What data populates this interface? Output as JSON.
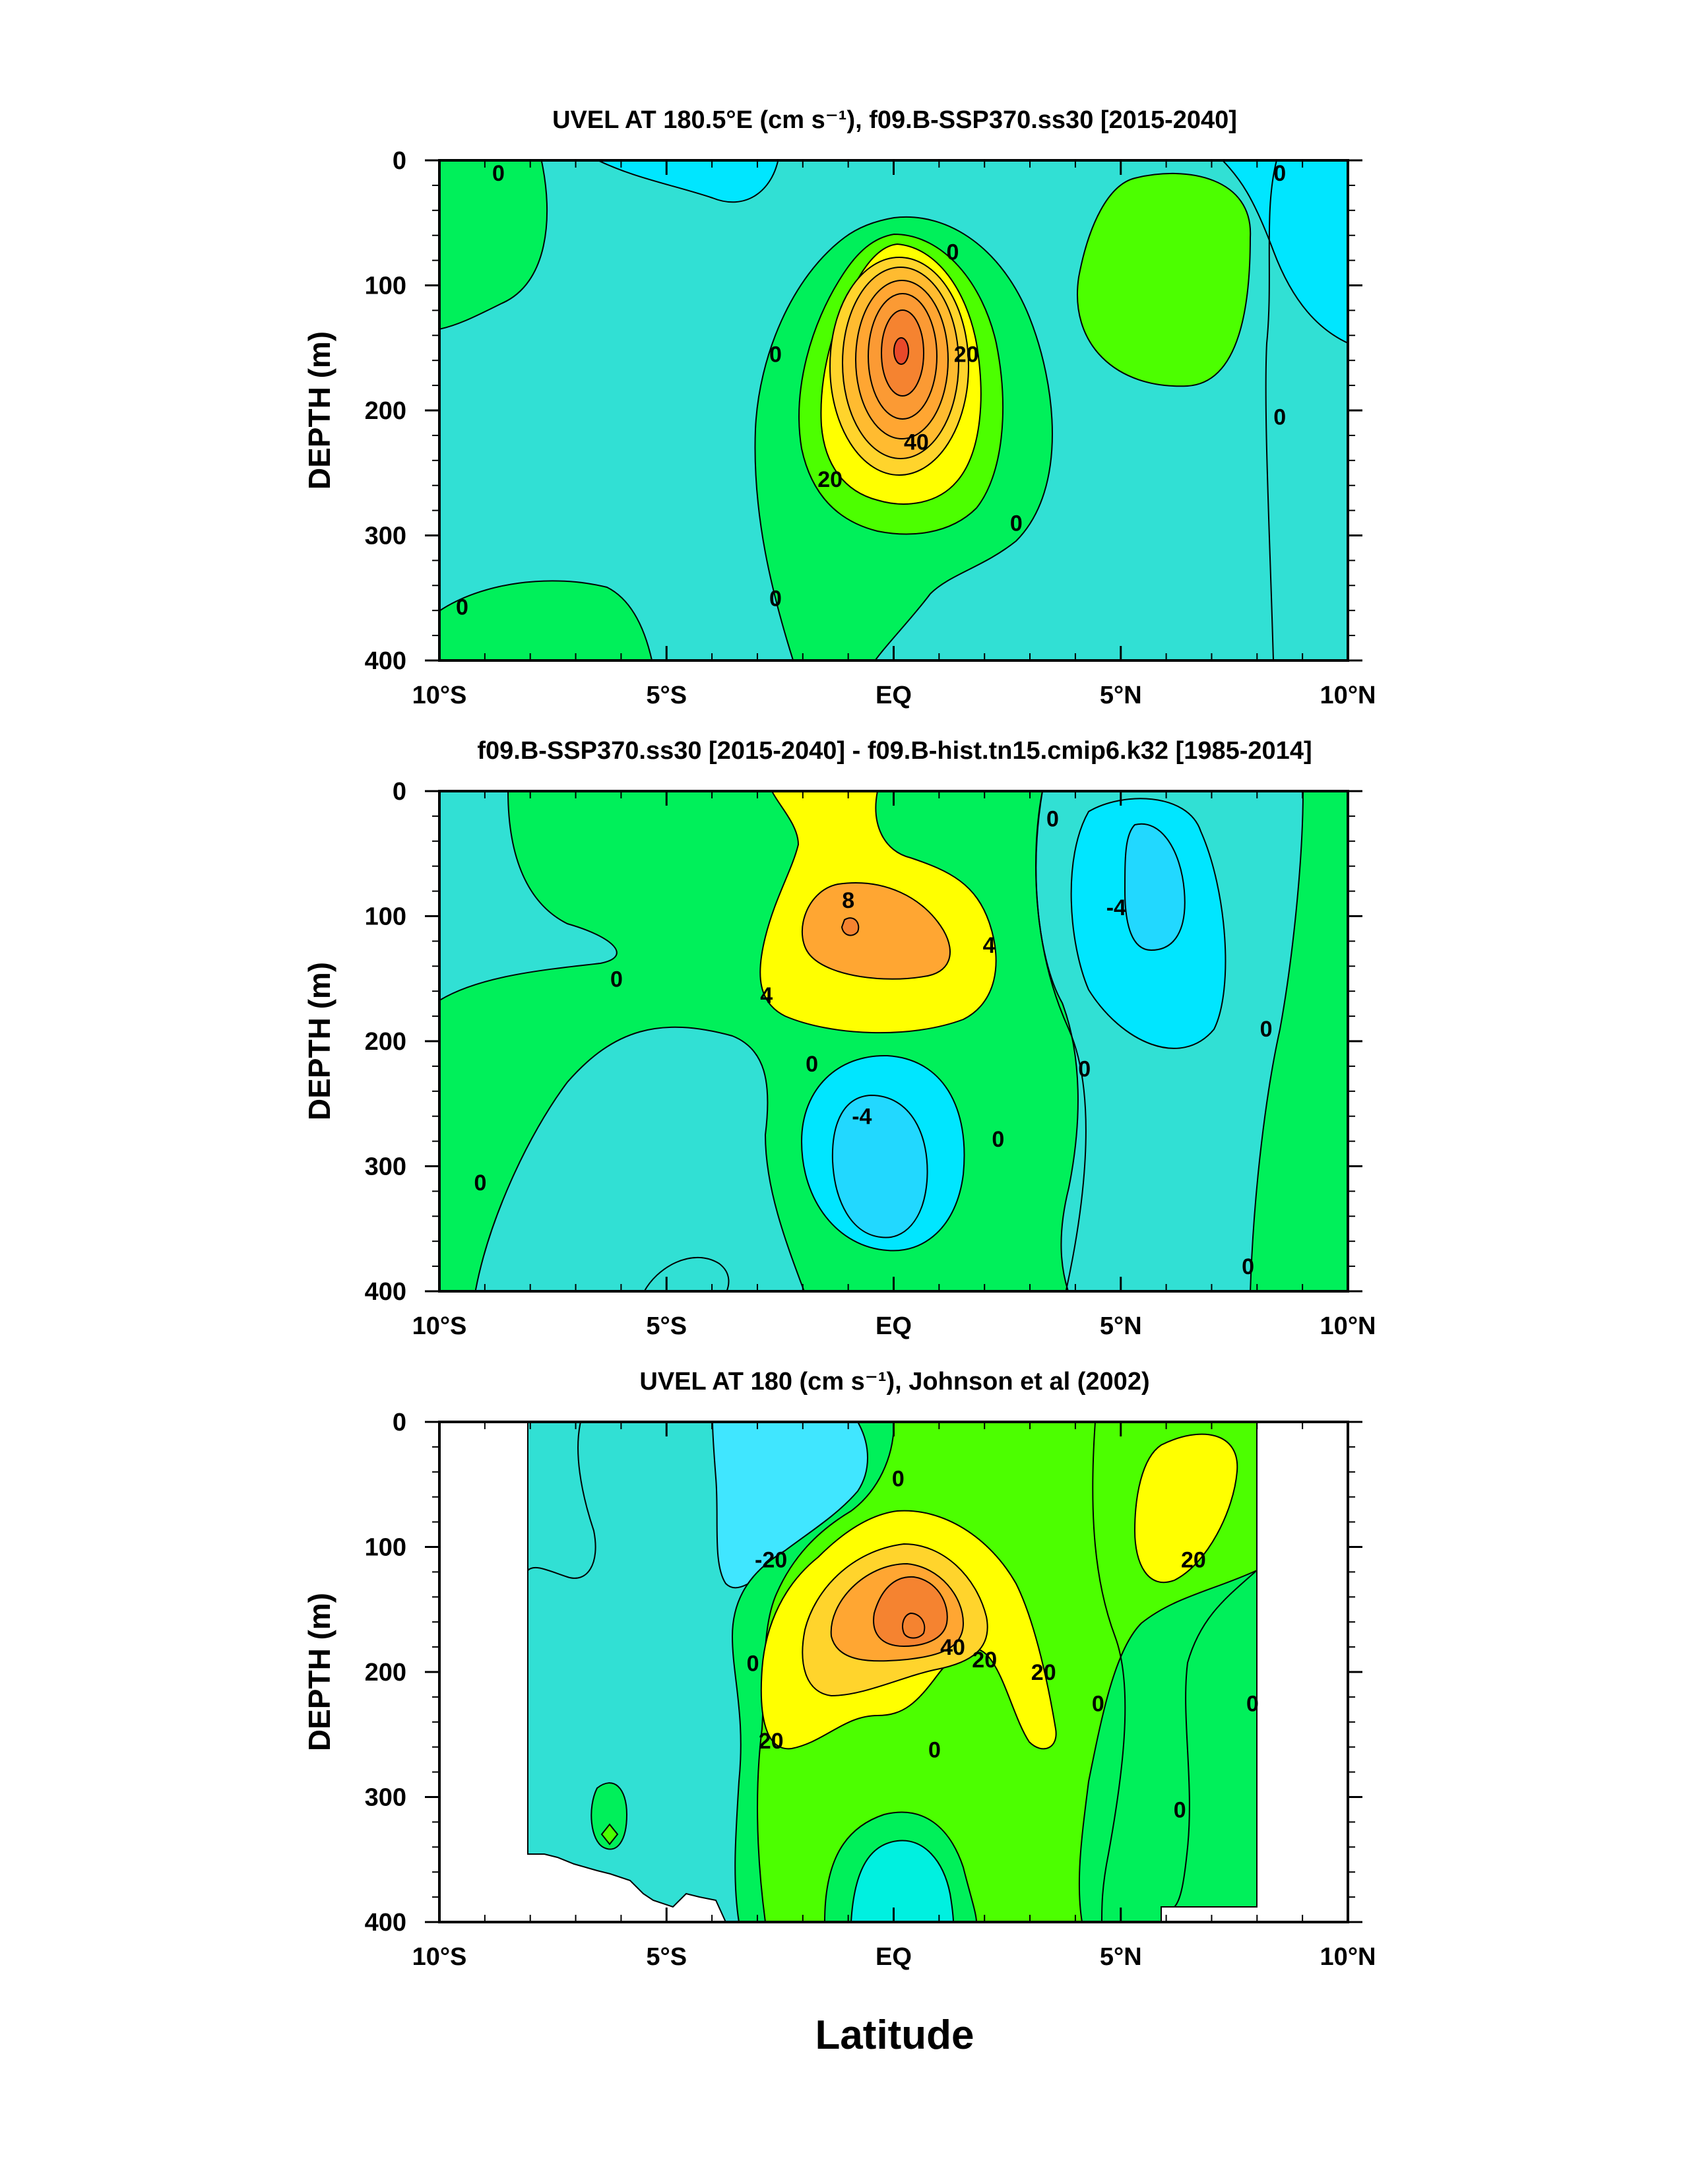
{
  "chart_data": [
    {
      "type": "contour",
      "title": "UVEL AT 180.5°E (cm s⁻¹), f09.B-SSP370.ss30 [2015-2040]",
      "ylabel": "DEPTH (m)",
      "xlim": [
        -10,
        10
      ],
      "ylim": [
        400,
        0
      ],
      "x_ticks": [
        -10,
        -5,
        0,
        5,
        10
      ],
      "x_tick_labels": [
        "10°S",
        "5°S",
        "EQ",
        "5°N",
        "10°N"
      ],
      "y_ticks": [
        0,
        100,
        200,
        300,
        400
      ],
      "y_tick_labels": [
        "0",
        "100",
        "200",
        "300",
        "400"
      ],
      "contour_labels": [
        {
          "text": "0",
          "lat": -8.7,
          "depth": 10
        },
        {
          "text": "0",
          "lat": 8.5,
          "depth": 10
        },
        {
          "text": "0",
          "lat": 1.3,
          "depth": 73
        },
        {
          "text": "0",
          "lat": -2.6,
          "depth": 155
        },
        {
          "text": "20",
          "lat": 1.6,
          "depth": 155
        },
        {
          "text": "40",
          "lat": 0.5,
          "depth": 225
        },
        {
          "text": "20",
          "lat": -1.4,
          "depth": 255
        },
        {
          "text": "0",
          "lat": 8.5,
          "depth": 205
        },
        {
          "text": "0",
          "lat": 2.7,
          "depth": 290
        },
        {
          "text": "0",
          "lat": -2.6,
          "depth": 350
        },
        {
          "text": "0",
          "lat": -9.5,
          "depth": 357
        }
      ],
      "features": [
        {
          "kind": "jet core",
          "lat": 0,
          "depth": 155,
          "max_value": 50
        },
        {
          "kind": "weak positive cell",
          "lat": -9,
          "depth": 80
        },
        {
          "kind": "weak positive cell",
          "lat": 6,
          "depth": 80
        },
        {
          "kind": "weak positive cell",
          "lat": -8,
          "depth": 380
        }
      ]
    },
    {
      "type": "contour",
      "title": "f09.B-SSP370.ss30 [2015-2040] - f09.B-hist.tn15.cmip6.k32 [1985-2014]",
      "ylabel": "DEPTH (m)",
      "xlim": [
        -10,
        10
      ],
      "ylim": [
        400,
        0
      ],
      "x_ticks": [
        -10,
        -5,
        0,
        5,
        10
      ],
      "x_tick_labels": [
        "10°S",
        "5°S",
        "EQ",
        "5°N",
        "10°N"
      ],
      "y_ticks": [
        0,
        100,
        200,
        300,
        400
      ],
      "y_tick_labels": [
        "0",
        "100",
        "200",
        "300",
        "400"
      ],
      "contour_labels": [
        {
          "text": "0",
          "lat": 3.5,
          "depth": 22
        },
        {
          "text": "8",
          "lat": -1.0,
          "depth": 87
        },
        {
          "text": "-4",
          "lat": 4.9,
          "depth": 93
        },
        {
          "text": "4",
          "lat": 2.1,
          "depth": 123
        },
        {
          "text": "0",
          "lat": -6.1,
          "depth": 150
        },
        {
          "text": "4",
          "lat": -2.8,
          "depth": 163
        },
        {
          "text": "0",
          "lat": 8.2,
          "depth": 190
        },
        {
          "text": "0",
          "lat": -1.8,
          "depth": 218
        },
        {
          "text": "0",
          "lat": 4.2,
          "depth": 222
        },
        {
          "text": "-4",
          "lat": -0.7,
          "depth": 260
        },
        {
          "text": "0",
          "lat": 2.3,
          "depth": 278
        },
        {
          "text": "0",
          "lat": -9.1,
          "depth": 313
        },
        {
          "text": "0",
          "lat": 7.8,
          "depth": 380
        }
      ],
      "features": [
        {
          "kind": "positive maximum",
          "lat": -1,
          "depth": 115,
          "max_value": 10
        },
        {
          "kind": "negative minimum",
          "lat": 0,
          "depth": 290,
          "min_value": -6
        },
        {
          "kind": "negative minimum",
          "lat": 5.5,
          "depth": 90,
          "min_value": -6
        }
      ]
    },
    {
      "type": "contour",
      "title": "UVEL AT 180 (cm s⁻¹), Johnson et al (2002)",
      "ylabel": "DEPTH (m)",
      "xlabel": "Latitude",
      "xlim": [
        -10,
        10
      ],
      "ylim": [
        400,
        0
      ],
      "x_ticks": [
        -10,
        -5,
        0,
        5,
        10
      ],
      "x_tick_labels": [
        "10°S",
        "5°S",
        "EQ",
        "5°N",
        "10°N"
      ],
      "y_ticks": [
        0,
        100,
        200,
        300,
        400
      ],
      "y_tick_labels": [
        "0",
        "100",
        "200",
        "300",
        "400"
      ],
      "data_extent_lat": [
        -8,
        8
      ],
      "contour_labels": [
        {
          "text": "0",
          "lat": 0.1,
          "depth": 45
        },
        {
          "text": "-20",
          "lat": -2.7,
          "depth": 110
        },
        {
          "text": "20",
          "lat": 6.6,
          "depth": 110
        },
        {
          "text": "0",
          "lat": -3.1,
          "depth": 193
        },
        {
          "text": "40",
          "lat": 1.3,
          "depth": 180
        },
        {
          "text": "20",
          "lat": 2.0,
          "depth": 190
        },
        {
          "text": "20",
          "lat": 3.3,
          "depth": 200
        },
        {
          "text": "0",
          "lat": 4.5,
          "depth": 225
        },
        {
          "text": "0",
          "lat": 7.9,
          "depth": 225
        },
        {
          "text": "20",
          "lat": -2.7,
          "depth": 255
        },
        {
          "text": "0",
          "lat": 0.9,
          "depth": 262
        },
        {
          "text": "0",
          "lat": 6.3,
          "depth": 310
        }
      ],
      "features": [
        {
          "kind": "jet core",
          "lat": 0.5,
          "depth": 165,
          "max_value": 50
        },
        {
          "kind": "westward surface flow",
          "lat": -2,
          "depth": 50,
          "min_value": -20
        },
        {
          "kind": "eastward cell",
          "lat": 6.5,
          "depth": 80,
          "max_value": 20
        }
      ]
    }
  ]
}
